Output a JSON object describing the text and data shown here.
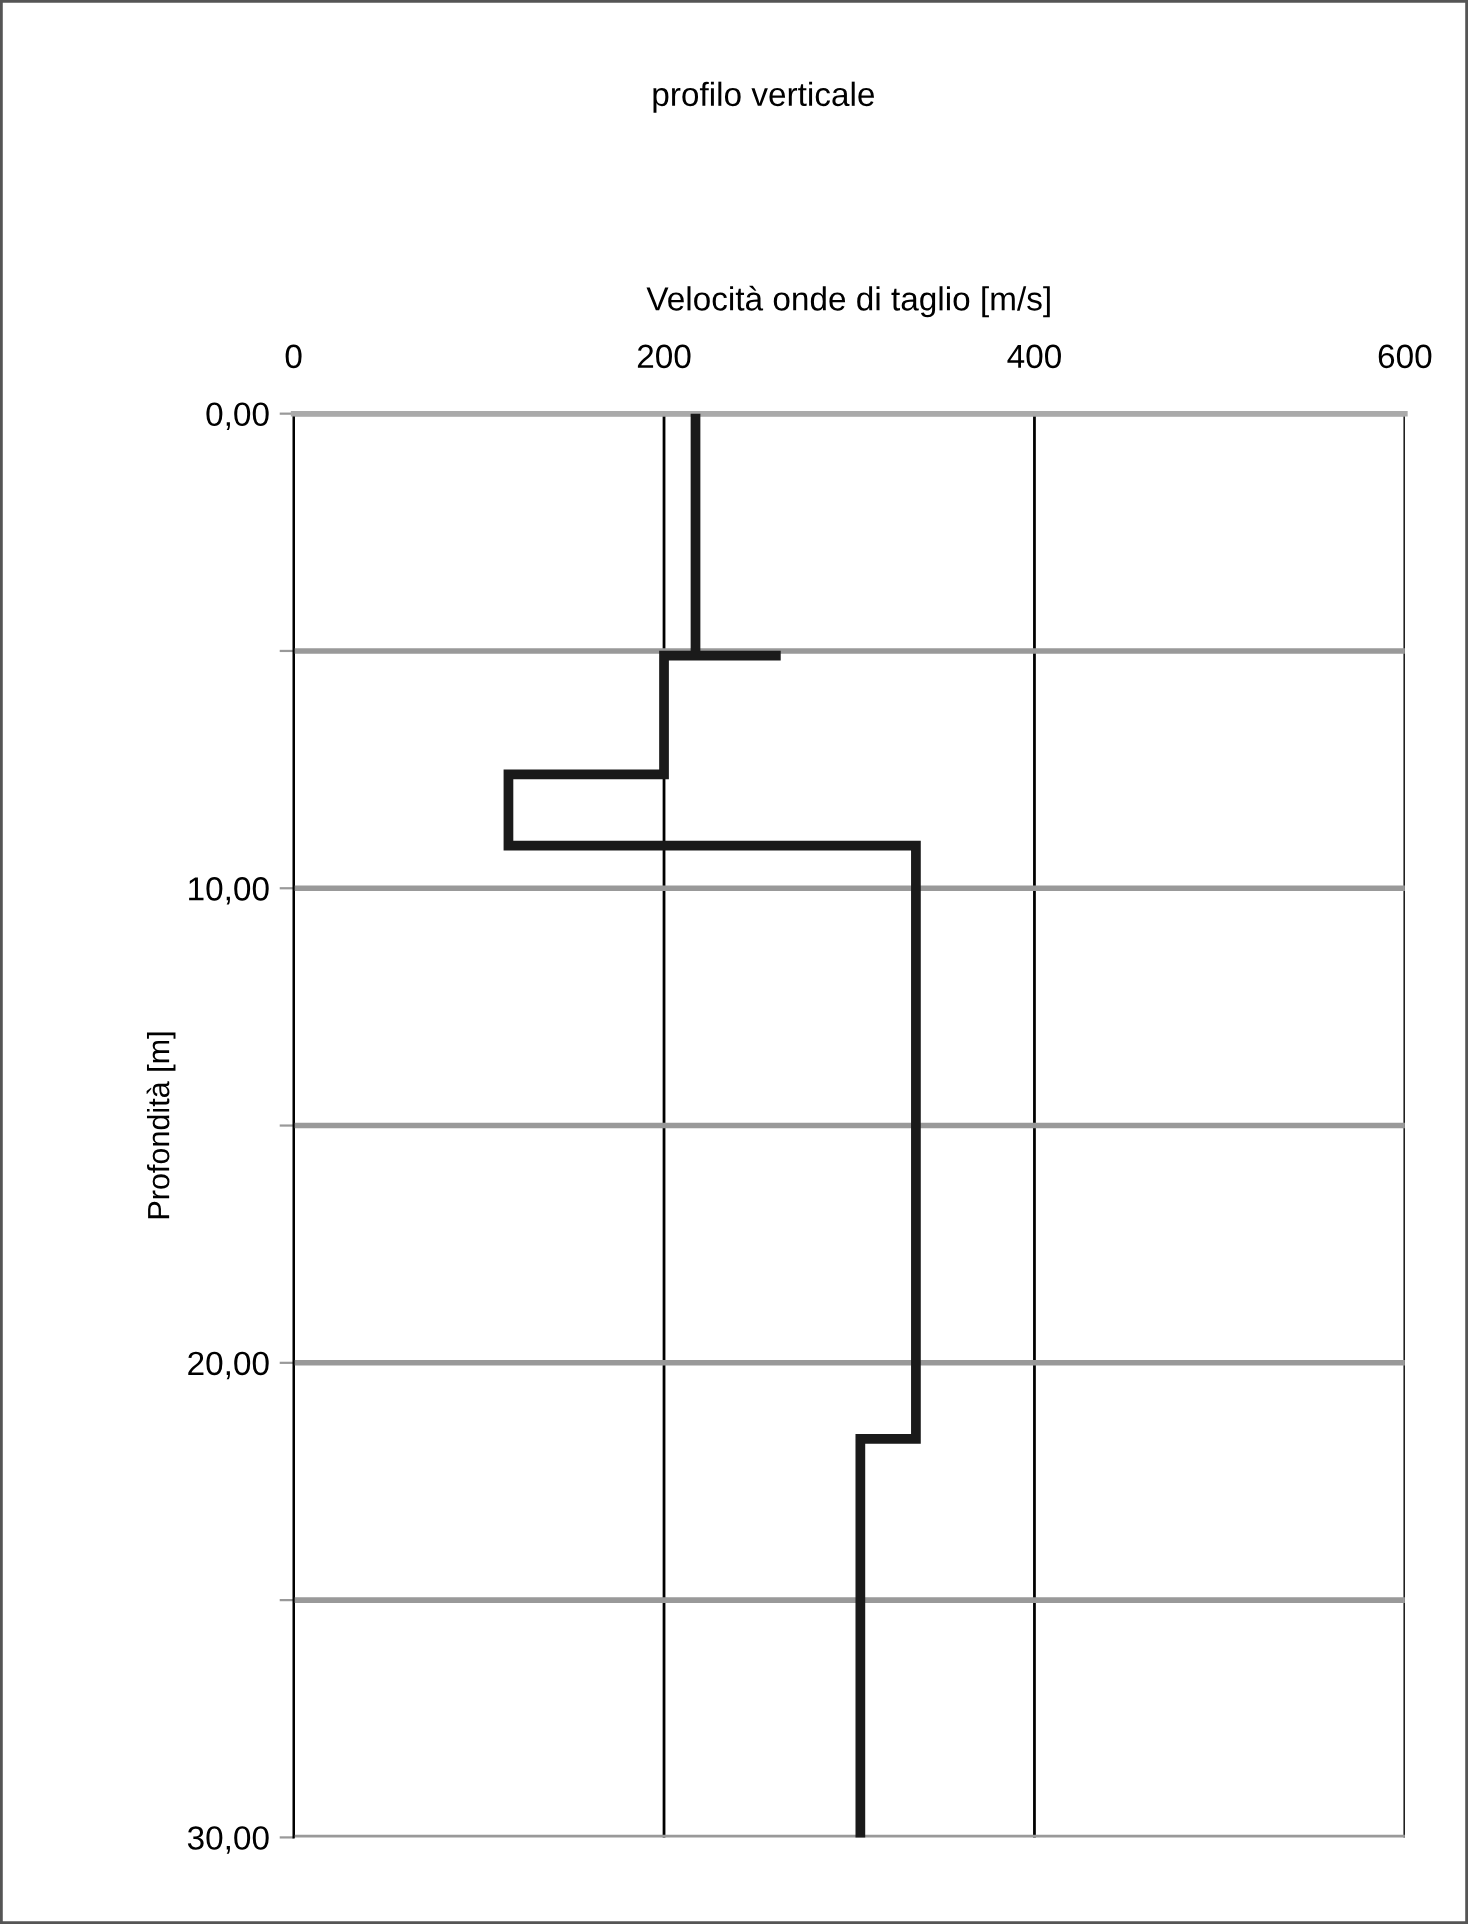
{
  "chart_data": {
    "type": "line",
    "title": "profilo verticale",
    "xlabel": "Velocità onde di taglio [m/s]",
    "ylabel": "Profondità [m]",
    "x": [
      217,
      217,
      263,
      200,
      200,
      116,
      116,
      336,
      336,
      306,
      306
    ],
    "series": [
      {
        "color": "#1a1a1a",
        "values": [
          0,
          5.1,
          5.1,
          5.1,
          7.6,
          7.6,
          9.1,
          9.1,
          21.6,
          21.6,
          30
        ]
      }
    ],
    "xlim": [
      0,
      600
    ],
    "xticks": [
      0,
      200,
      400,
      600
    ],
    "ylim": [
      30,
      0
    ],
    "yticks": [
      {
        "value": 0,
        "label": "0,00"
      },
      {
        "value": 5,
        "label": null
      },
      {
        "value": 10,
        "label": "10,00"
      },
      {
        "value": 15,
        "label": null
      },
      {
        "value": 20,
        "label": "20,00"
      },
      {
        "value": 25,
        "label": null
      },
      {
        "value": 30,
        "label": "30,00"
      }
    ],
    "grid": true,
    "marker": "none",
    "line_style": "solid",
    "legend": false
  }
}
